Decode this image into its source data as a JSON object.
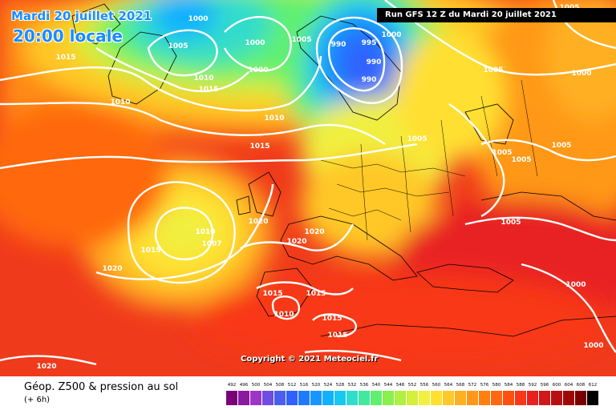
{
  "title": {
    "date": "Mardi 20 juillet 2021",
    "time": "20:00 locale"
  },
  "run_banner": "Run GFS 12 Z du Mardi 20 juillet 2021",
  "copyright": "Copyright © 2021 Meteociel.fr",
  "footer": {
    "title": "Géop. Z500 & pression au sol",
    "subtitle": "(+ 6h)"
  },
  "scale": {
    "labels": [
      "492",
      "496",
      "500",
      "504",
      "508",
      "512",
      "516",
      "520",
      "524",
      "528",
      "532",
      "536",
      "540",
      "544",
      "548",
      "552",
      "556",
      "560",
      "564",
      "568",
      "572",
      "576",
      "580",
      "584",
      "588",
      "592",
      "596",
      "600",
      "604",
      "608",
      "612"
    ],
    "colors": [
      "#7a007a",
      "#8c1aa0",
      "#9f35c6",
      "#6e4de0",
      "#4a5ef0",
      "#3060ff",
      "#1e7bff",
      "#1896ff",
      "#10b0ff",
      "#18c8f0",
      "#30dccc",
      "#40e8a0",
      "#60f070",
      "#8af050",
      "#b0f040",
      "#d4f038",
      "#f0f040",
      "#ffe030",
      "#ffc828",
      "#ffb020",
      "#ff9818",
      "#ff8010",
      "#ff6810",
      "#ff5010",
      "#f83818",
      "#e82020",
      "#d01818",
      "#b81010",
      "#a00808",
      "#780000",
      "#000000"
    ]
  },
  "isobar_labels": [
    {
      "text": "1000",
      "lon": 247,
      "lat": 22
    },
    {
      "text": "1005",
      "lon": 222,
      "lat": 56
    },
    {
      "text": "1015",
      "lon": 82,
      "lat": 70
    },
    {
      "text": "1010",
      "lon": 254,
      "lat": 96
    },
    {
      "text": "1015",
      "lon": 260,
      "lat": 110
    },
    {
      "text": "1000",
      "lon": 318,
      "lat": 52
    },
    {
      "text": "1000",
      "lon": 322,
      "lat": 86
    },
    {
      "text": "1005",
      "lon": 376,
      "lat": 48
    },
    {
      "text": "990",
      "lon": 422,
      "lat": 54
    },
    {
      "text": "995",
      "lon": 460,
      "lat": 52
    },
    {
      "text": "1000",
      "lon": 488,
      "lat": 42
    },
    {
      "text": "990",
      "lon": 466,
      "lat": 76
    },
    {
      "text": "990",
      "lon": 460,
      "lat": 98
    },
    {
      "text": "1010",
      "lon": 150,
      "lat": 126
    },
    {
      "text": "1010",
      "lon": 342,
      "lat": 146
    },
    {
      "text": "1015",
      "lon": 324,
      "lat": 181
    },
    {
      "text": "1005",
      "lon": 520,
      "lat": 172
    },
    {
      "text": "1005",
      "lon": 615,
      "lat": 86
    },
    {
      "text": "1000",
      "lon": 725,
      "lat": 90
    },
    {
      "text": "1005",
      "lon": 710,
      "lat": 8
    },
    {
      "text": "1005",
      "lon": 626,
      "lat": 189
    },
    {
      "text": "1005",
      "lon": 650,
      "lat": 198
    },
    {
      "text": "1005",
      "lon": 700,
      "lat": 180
    },
    {
      "text": "1005",
      "lon": 637,
      "lat": 276
    },
    {
      "text": "1010",
      "lon": 256,
      "lat": 288
    },
    {
      "text": "1007",
      "lon": 264,
      "lat": 303
    },
    {
      "text": "1015",
      "lon": 188,
      "lat": 311
    },
    {
      "text": "1020",
      "lon": 322,
      "lat": 275
    },
    {
      "text": "1020",
      "lon": 392,
      "lat": 288
    },
    {
      "text": "1020",
      "lon": 370,
      "lat": 300
    },
    {
      "text": "1020",
      "lon": 140,
      "lat": 334
    },
    {
      "text": "1015",
      "lon": 340,
      "lat": 365
    },
    {
      "text": "1015",
      "lon": 394,
      "lat": 365
    },
    {
      "text": "1010",
      "lon": 354,
      "lat": 391
    },
    {
      "text": "1015",
      "lon": 414,
      "lat": 396
    },
    {
      "text": "1015",
      "lon": 421,
      "lat": 417
    },
    {
      "text": "1000",
      "lon": 718,
      "lat": 354
    },
    {
      "text": "1000",
      "lon": 740,
      "lat": 430
    },
    {
      "text": "1020",
      "lon": 58,
      "lat": 456
    }
  ]
}
